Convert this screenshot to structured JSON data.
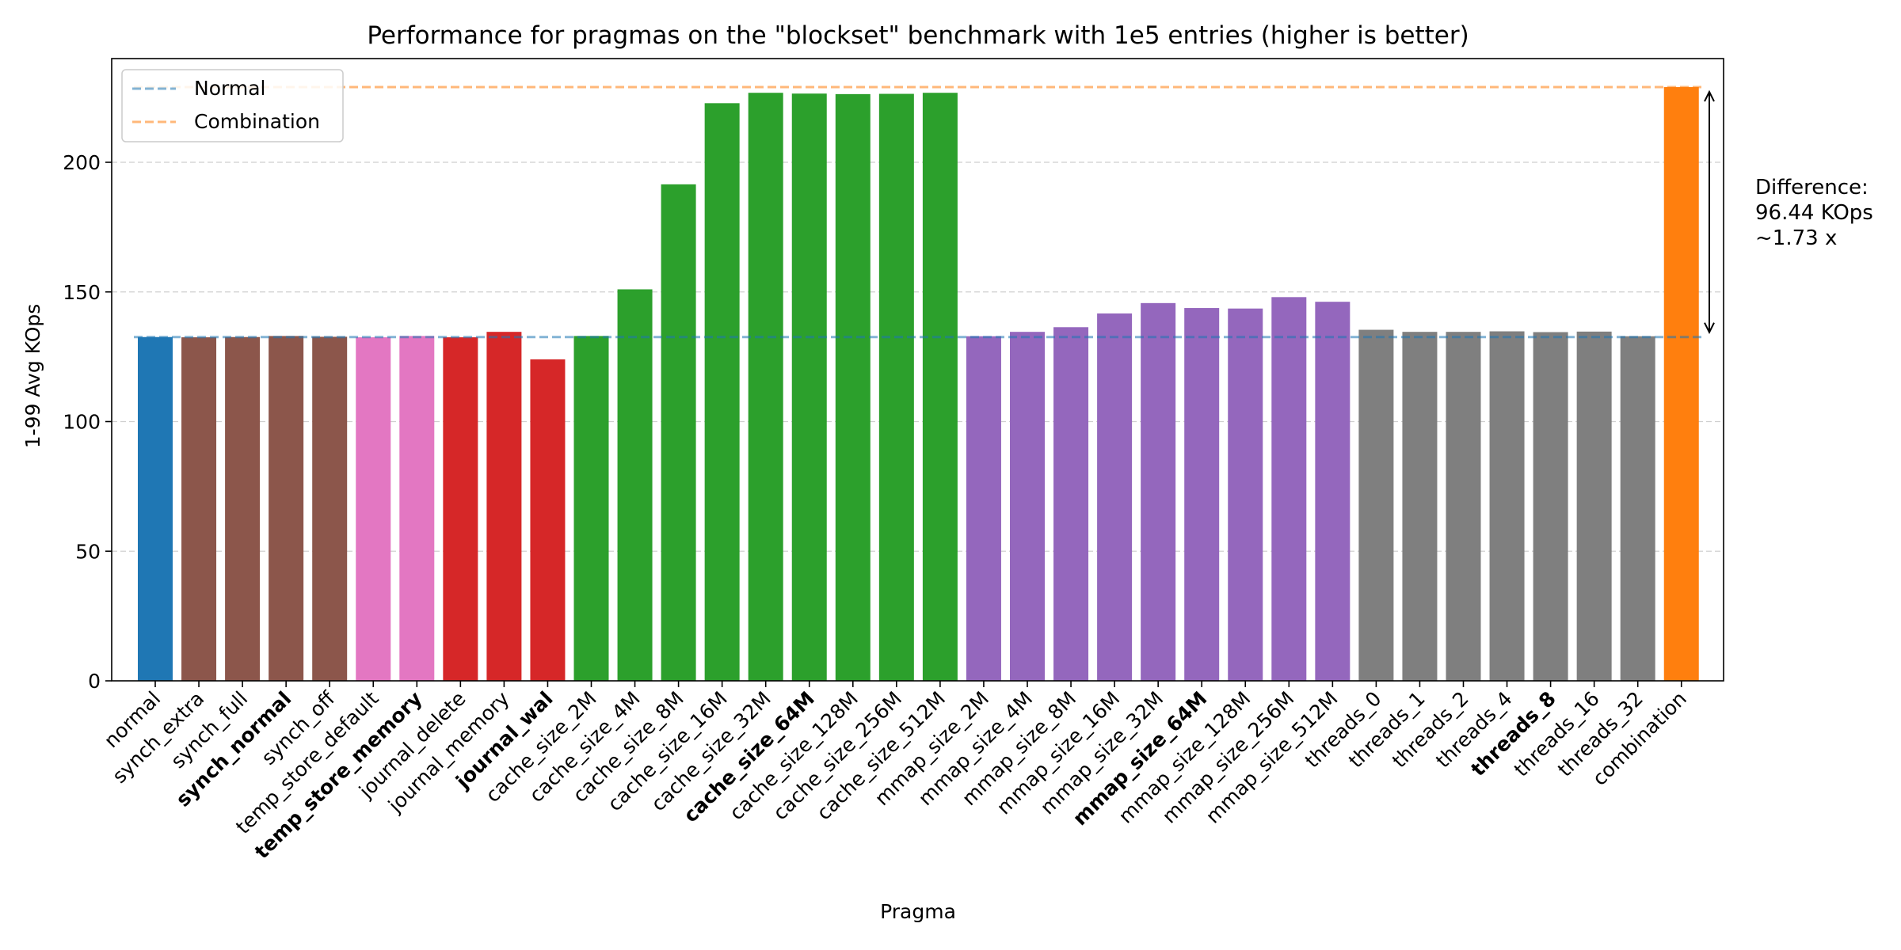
{
  "chart_data": {
    "type": "bar",
    "title": "Performance for pragmas on the \"blockset\" benchmark with 1e5 entries (higher is better)",
    "xlabel": "Pragma",
    "ylabel": "1-99 Avg KOps",
    "ylim": [
      0,
      240
    ],
    "yticks": [
      "0",
      "50",
      "100",
      "150",
      "200"
    ],
    "grid": "y-dashed",
    "categories": [
      "normal",
      "synch_extra",
      "synch_full",
      "synch_normal",
      "synch_off",
      "temp_store_default",
      "temp_store_memory",
      "journal_delete",
      "journal_memory",
      "journal_wal",
      "cache_size_2M",
      "cache_size_4M",
      "cache_size_8M",
      "cache_size_16M",
      "cache_size_32M",
      "cache_size_64M",
      "cache_size_128M",
      "cache_size_256M",
      "cache_size_512M",
      "mmap_size_2M",
      "mmap_size_4M",
      "mmap_size_8M",
      "mmap_size_16M",
      "mmap_size_32M",
      "mmap_size_64M",
      "mmap_size_128M",
      "mmap_size_256M",
      "mmap_size_512M",
      "threads_0",
      "threads_1",
      "threads_2",
      "threads_4",
      "threads_8",
      "threads_16",
      "threads_32",
      "combination"
    ],
    "values": [
      132.6,
      132.5,
      132.6,
      133.0,
      132.7,
      132.5,
      133.0,
      132.5,
      134.6,
      124.0,
      133.0,
      151.0,
      191.5,
      222.8,
      226.8,
      226.5,
      226.3,
      226.4,
      226.8,
      132.9,
      134.6,
      136.4,
      141.7,
      145.7,
      143.8,
      143.6,
      148.0,
      146.2,
      135.4,
      134.6,
      134.6,
      134.8,
      134.5,
      134.7,
      132.9,
      229.0
    ],
    "groups": [
      "normal",
      "synch",
      "synch",
      "synch",
      "synch",
      "temp_store",
      "temp_store",
      "journal",
      "journal",
      "journal",
      "cache",
      "cache",
      "cache",
      "cache",
      "cache",
      "cache",
      "cache",
      "cache",
      "cache",
      "mmap",
      "mmap",
      "mmap",
      "mmap",
      "mmap",
      "mmap",
      "mmap",
      "mmap",
      "mmap",
      "threads",
      "threads",
      "threads",
      "threads",
      "threads",
      "threads",
      "threads",
      "combination"
    ],
    "bold_labels": [
      "synch_normal",
      "temp_store_memory",
      "journal_wal",
      "cache_size_64M",
      "mmap_size_64M",
      "threads_8"
    ],
    "group_colors": {
      "normal": "#1f77b4",
      "synch": "#8c564b",
      "temp_store": "#e377c2",
      "journal": "#d62728",
      "cache": "#2ca02c",
      "mmap": "#9467bd",
      "threads": "#7f7f7f",
      "combination": "#ff7f0e"
    },
    "reference_lines": [
      {
        "name": "Normal",
        "value": 132.6,
        "color": "#1f77b4"
      },
      {
        "name": "Combination",
        "value": 229.0,
        "color": "#ff7f0e"
      }
    ],
    "legend": {
      "placement": "top-left",
      "entries": [
        "Normal",
        "Combination"
      ]
    },
    "annotation": {
      "lines": [
        "Difference:",
        "96.44 KOps",
        "~1.73 x"
      ]
    }
  }
}
